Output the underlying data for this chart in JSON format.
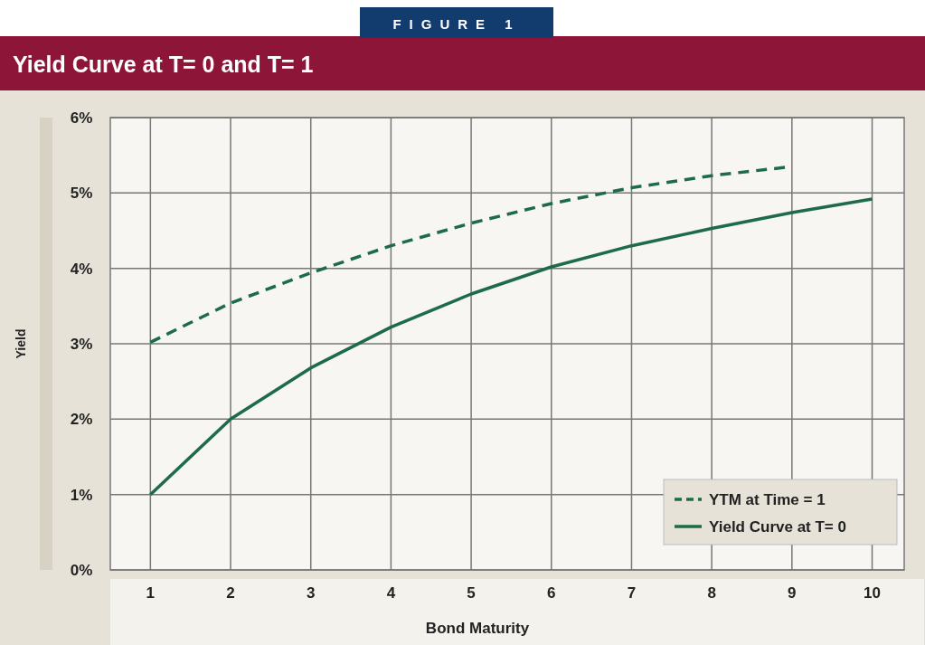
{
  "chart_data": {
    "type": "line",
    "subtitle": "FIGURE 1",
    "title": "Yield Curve at T= 0 and T= 1",
    "xlabel": "Bond Maturity",
    "ylabel": "Yield",
    "xlim": [
      0.5,
      10.4
    ],
    "xticks": [
      1,
      2,
      3,
      4,
      5,
      6,
      7,
      8,
      9,
      10
    ],
    "ylim": [
      0,
      6
    ],
    "yticks": [
      {
        "value": 0,
        "label": "0%"
      },
      {
        "value": 1,
        "label": "1%"
      },
      {
        "value": 2,
        "label": "2%"
      },
      {
        "value": 3,
        "label": "3%"
      },
      {
        "value": 4,
        "label": "4%"
      },
      {
        "value": 5,
        "label": "5%"
      },
      {
        "value": 6,
        "label": "6%"
      }
    ],
    "grid": true,
    "legend": "bottom right",
    "marker": "none",
    "series": [
      {
        "name": "YTM at Time = 1",
        "color": "#1e6b4a",
        "line_style": "dashed",
        "x": [
          1,
          2,
          3,
          4,
          5,
          6,
          7,
          8,
          9
        ],
        "values": [
          3.02,
          3.54,
          3.94,
          4.3,
          4.6,
          4.86,
          5.07,
          5.23,
          5.35
        ]
      },
      {
        "name": "Yield Curve at T= 0",
        "color": "#1e6b4a",
        "line_style": "solid",
        "x": [
          1,
          2,
          3,
          4,
          5,
          6,
          7,
          8,
          9,
          10
        ],
        "values": [
          1,
          2,
          2.68,
          3.22,
          3.66,
          4.02,
          4.3,
          4.53,
          4.74,
          4.92
        ]
      }
    ]
  }
}
